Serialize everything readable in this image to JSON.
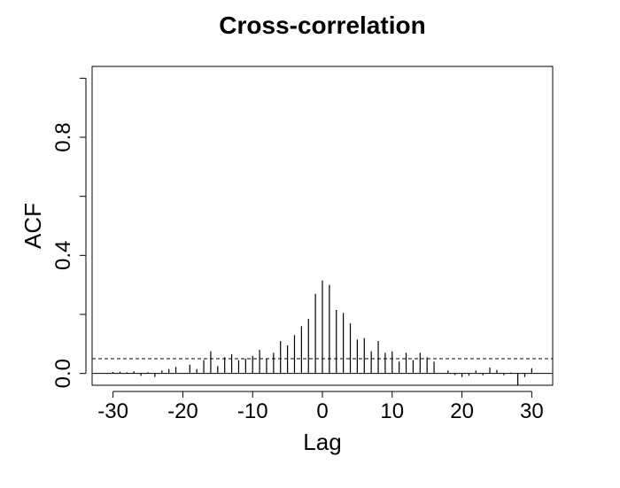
{
  "chart_data": {
    "type": "bar",
    "title": "Cross-correlation",
    "xlabel": "Lag",
    "ylabel": "ACF",
    "xlim": [
      -33,
      33
    ],
    "ylim": [
      -0.04,
      1.04
    ],
    "x_ticks": [
      -30,
      -20,
      -10,
      0,
      10,
      20,
      30
    ],
    "x_tick_labels": [
      "-30",
      "-20",
      "-10",
      "0",
      "10",
      "20",
      "30"
    ],
    "y_ticks": [
      0.0,
      0.2,
      0.4,
      0.6,
      0.8,
      1.0
    ],
    "y_tick_labels": [
      "0.0",
      "",
      "0.4",
      "",
      "0.8",
      ""
    ],
    "confidence_bound": 0.05,
    "lags": [
      -30,
      -29,
      -28,
      -27,
      -26,
      -25,
      -24,
      -23,
      -22,
      -21,
      -20,
      -19,
      -18,
      -17,
      -16,
      -15,
      -14,
      -13,
      -12,
      -11,
      -10,
      -9,
      -8,
      -7,
      -6,
      -5,
      -4,
      -3,
      -2,
      -1,
      0,
      1,
      2,
      3,
      4,
      5,
      6,
      7,
      8,
      9,
      10,
      11,
      12,
      13,
      14,
      15,
      16,
      17,
      18,
      19,
      20,
      21,
      22,
      23,
      24,
      25,
      26,
      27,
      28,
      29,
      30
    ],
    "values": [
      0.005,
      0.006,
      0.004,
      0.007,
      -0.008,
      0.004,
      -0.012,
      0.01,
      0.015,
      0.022,
      0.001,
      0.03,
      0.015,
      0.045,
      0.075,
      0.025,
      0.055,
      0.065,
      0.045,
      0.05,
      0.06,
      0.08,
      0.05,
      0.07,
      0.11,
      0.095,
      0.13,
      0.16,
      0.185,
      0.27,
      0.315,
      0.3,
      0.215,
      0.205,
      0.17,
      0.115,
      0.12,
      0.075,
      0.11,
      0.07,
      0.075,
      0.04,
      0.07,
      0.045,
      0.07,
      0.055,
      0.04,
      0.001,
      0.01,
      -0.005,
      -0.012,
      -0.008,
      0.01,
      -0.006,
      0.02,
      0.012,
      -0.006,
      0.003,
      -0.04,
      -0.012,
      0.018
    ]
  }
}
